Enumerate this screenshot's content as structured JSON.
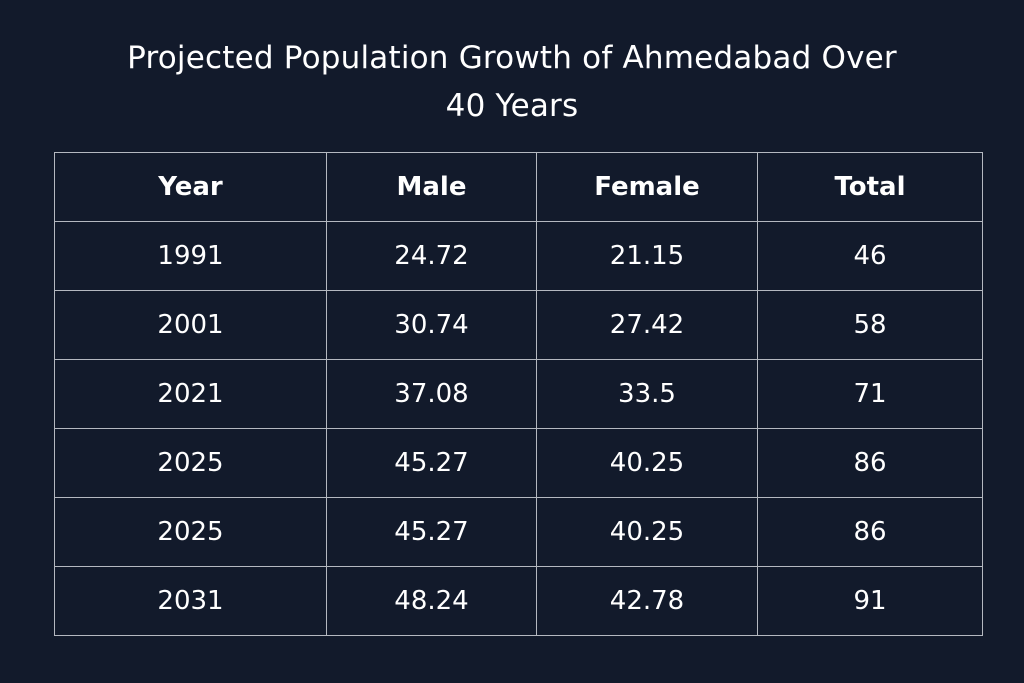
{
  "chart_data": {
    "type": "table",
    "title": "Projected Population Growth of Ahmedabad Over 40 Years",
    "columns": [
      "Year",
      "Male",
      "Female",
      "Total"
    ],
    "rows": [
      [
        "1991",
        "24.72",
        "21.15",
        "46"
      ],
      [
        "2001",
        "30.74",
        "27.42",
        "58"
      ],
      [
        "2021",
        "37.08",
        "33.5",
        "71"
      ],
      [
        "2025",
        "45.27",
        "40.25",
        "86"
      ],
      [
        "2025",
        "45.27",
        "40.25",
        "86"
      ],
      [
        "2031",
        "48.24",
        "42.78",
        "91"
      ]
    ]
  },
  "colors": {
    "background": "#121a2b",
    "text": "#ffffff",
    "grid": "#b4b8c0"
  }
}
